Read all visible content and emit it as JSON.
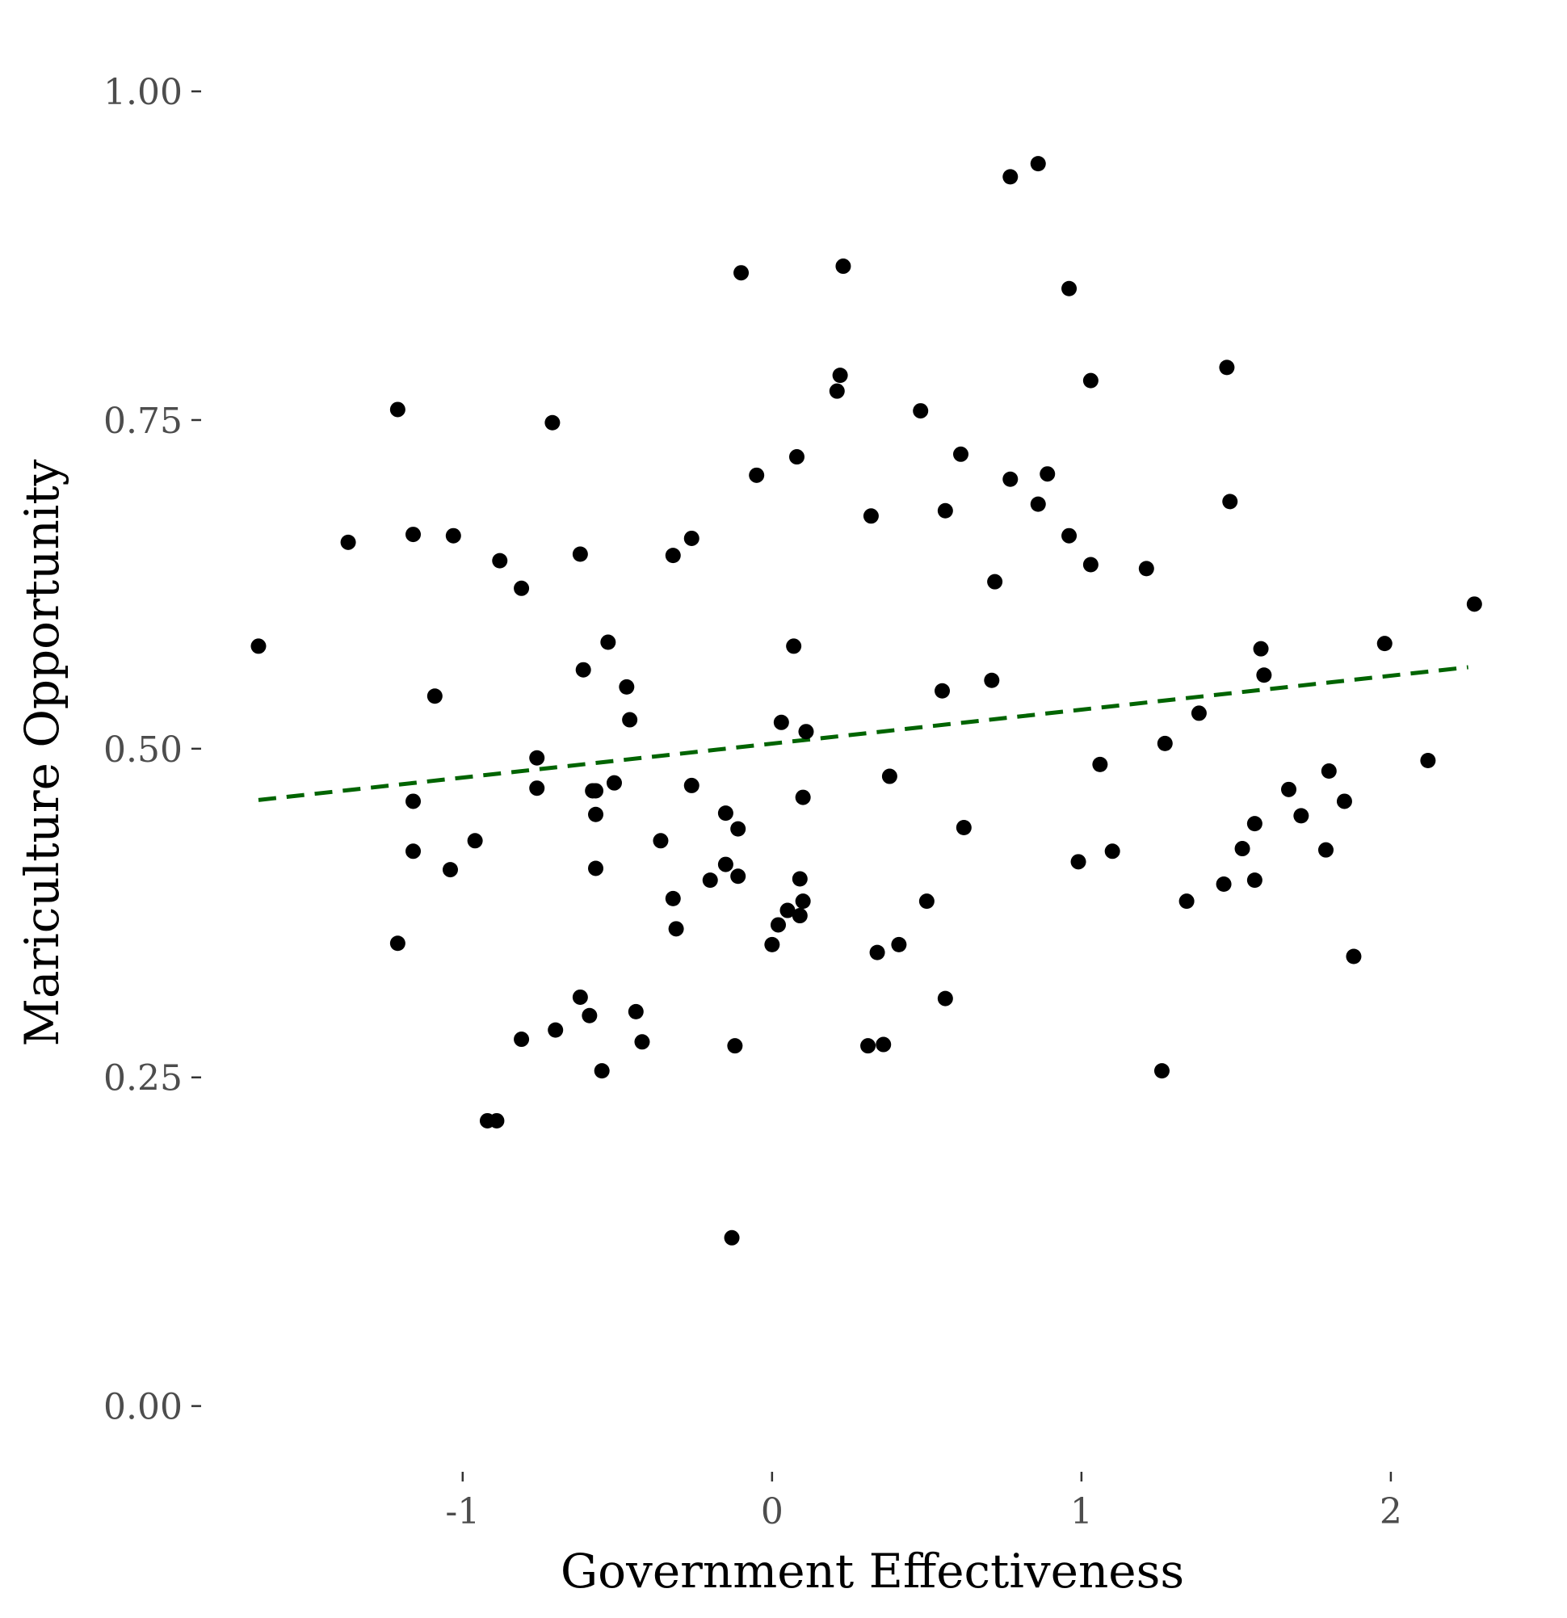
{
  "chart_data": {
    "type": "scatter",
    "title": "",
    "xlabel": "Government Effectiveness",
    "ylabel": "Mariculture Opportunity",
    "xlim": [
      -1.66,
      2.29
    ],
    "ylim": [
      -0.05,
      1.04
    ],
    "x_ticks": [
      -1,
      0,
      1,
      2
    ],
    "x_tick_labels": [
      "-1",
      "0",
      "1",
      "2"
    ],
    "y_ticks": [
      0,
      0.25,
      0.5,
      0.75,
      1
    ],
    "y_tick_labels": [
      "0.00",
      "0.25",
      "0.50",
      "0.75",
      "1.00"
    ],
    "grid": false,
    "point_color": "#000000",
    "trend_line": {
      "color": "#006400",
      "style": "dashed",
      "x": [
        -1.66,
        2.25
      ],
      "y": [
        0.461,
        0.562
      ]
    },
    "series": [
      {
        "points": [
          [
            -1.66,
            0.578
          ],
          [
            -1.37,
            0.657
          ],
          [
            -1.21,
            0.758
          ],
          [
            -1.21,
            0.352
          ],
          [
            -1.16,
            0.663
          ],
          [
            -1.16,
            0.46
          ],
          [
            -1.16,
            0.422
          ],
          [
            -1.09,
            0.54
          ],
          [
            -1.03,
            0.662
          ],
          [
            -1.04,
            0.408
          ],
          [
            -0.96,
            0.43
          ],
          [
            -0.92,
            0.217
          ],
          [
            -0.89,
            0.217
          ],
          [
            -0.88,
            0.643
          ],
          [
            -0.81,
            0.622
          ],
          [
            -0.81,
            0.279
          ],
          [
            -0.76,
            0.493
          ],
          [
            -0.76,
            0.47
          ],
          [
            -0.71,
            0.748
          ],
          [
            -0.7,
            0.286
          ],
          [
            -0.62,
            0.648
          ],
          [
            -0.62,
            0.311
          ],
          [
            -0.61,
            0.56
          ],
          [
            -0.59,
            0.297
          ],
          [
            -0.58,
            0.468
          ],
          [
            -0.57,
            0.468
          ],
          [
            -0.57,
            0.45
          ],
          [
            -0.57,
            0.409
          ],
          [
            -0.55,
            0.255
          ],
          [
            -0.53,
            0.581
          ],
          [
            -0.51,
            0.474
          ],
          [
            -0.47,
            0.547
          ],
          [
            -0.46,
            0.522
          ],
          [
            -0.44,
            0.3
          ],
          [
            -0.42,
            0.277
          ],
          [
            -0.36,
            0.43
          ],
          [
            -0.32,
            0.647
          ],
          [
            -0.31,
            0.363
          ],
          [
            -0.32,
            0.386
          ],
          [
            -0.26,
            0.66
          ],
          [
            -0.26,
            0.472
          ],
          [
            -0.2,
            0.4
          ],
          [
            -0.15,
            0.451
          ],
          [
            -0.15,
            0.412
          ],
          [
            -0.13,
            0.128
          ],
          [
            -0.12,
            0.274
          ],
          [
            -0.11,
            0.439
          ],
          [
            -0.11,
            0.403
          ],
          [
            -0.1,
            0.862
          ],
          [
            -0.05,
            0.708
          ],
          [
            0.0,
            0.351
          ],
          [
            0.02,
            0.366
          ],
          [
            0.03,
            0.52
          ],
          [
            0.05,
            0.377
          ],
          [
            0.07,
            0.578
          ],
          [
            0.08,
            0.722
          ],
          [
            0.09,
            0.401
          ],
          [
            0.09,
            0.373
          ],
          [
            0.1,
            0.384
          ],
          [
            0.1,
            0.463
          ],
          [
            0.11,
            0.513
          ],
          [
            0.21,
            0.772
          ],
          [
            0.22,
            0.784
          ],
          [
            0.23,
            0.867
          ],
          [
            0.31,
            0.274
          ],
          [
            0.32,
            0.677
          ],
          [
            0.34,
            0.345
          ],
          [
            0.36,
            0.275
          ],
          [
            0.38,
            0.479
          ],
          [
            0.41,
            0.351
          ],
          [
            0.48,
            0.757
          ],
          [
            0.5,
            0.384
          ],
          [
            0.55,
            0.544
          ],
          [
            0.56,
            0.681
          ],
          [
            0.56,
            0.31
          ],
          [
            0.61,
            0.724
          ],
          [
            0.62,
            0.44
          ],
          [
            0.71,
            0.552
          ],
          [
            0.72,
            0.627
          ],
          [
            0.77,
            0.705
          ],
          [
            0.77,
            0.935
          ],
          [
            0.86,
            0.945
          ],
          [
            0.86,
            0.686
          ],
          [
            0.89,
            0.709
          ],
          [
            0.96,
            0.85
          ],
          [
            0.96,
            0.662
          ],
          [
            0.99,
            0.414
          ],
          [
            1.03,
            0.78
          ],
          [
            1.03,
            0.64
          ],
          [
            1.06,
            0.488
          ],
          [
            1.1,
            0.422
          ],
          [
            1.21,
            0.637
          ],
          [
            1.26,
            0.255
          ],
          [
            1.27,
            0.504
          ],
          [
            1.34,
            0.384
          ],
          [
            1.38,
            0.527
          ],
          [
            1.46,
            0.397
          ],
          [
            1.47,
            0.79
          ],
          [
            1.48,
            0.688
          ],
          [
            1.52,
            0.424
          ],
          [
            1.56,
            0.443
          ],
          [
            1.56,
            0.4
          ],
          [
            1.58,
            0.576
          ],
          [
            1.59,
            0.556
          ],
          [
            1.67,
            0.469
          ],
          [
            1.71,
            0.449
          ],
          [
            1.79,
            0.423
          ],
          [
            1.8,
            0.483
          ],
          [
            1.85,
            0.46
          ],
          [
            1.88,
            0.342
          ],
          [
            1.98,
            0.58
          ],
          [
            2.12,
            0.491
          ],
          [
            2.27,
            0.61
          ]
        ]
      }
    ]
  }
}
